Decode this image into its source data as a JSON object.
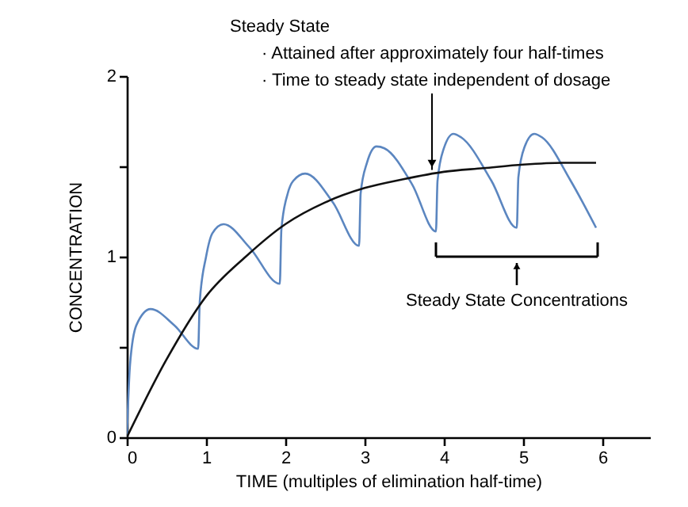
{
  "chart_data": {
    "type": "line",
    "xlabel": "TIME (multiples of elimination half-time)",
    "ylabel": "CONCENTRATION",
    "xlim": [
      0,
      6.6
    ],
    "xticks": [
      0,
      1,
      2,
      3,
      4,
      5,
      6
    ],
    "ylim": [
      0,
      2
    ],
    "yticks": [
      0,
      {
        "value": 0.5,
        "label": null
      },
      1,
      {
        "value": 1.5,
        "label": null
      },
      2
    ],
    "grid": false,
    "marker": "none",
    "line_style": "solid",
    "series": [
      {
        "color": "#5b86c0",
        "x": [
          0,
          0.04,
          0.12,
          0.3,
          0.6,
          0.9,
          0.92,
          1.0,
          1.08,
          1.22,
          1.55,
          1.93,
          1.95,
          2.03,
          2.1,
          2.25,
          2.6,
          2.93,
          2.95,
          3.03,
          3.15,
          3.25,
          3.6,
          3.9,
          3.92,
          4.0,
          4.12,
          4.22,
          4.6,
          4.92,
          4.94,
          5.02,
          5.14,
          5.24,
          5.6,
          5.92
        ],
        "values": [
          0,
          0.4,
          0.62,
          0.71,
          0.62,
          0.49,
          0.75,
          1.0,
          1.13,
          1.18,
          1.05,
          0.85,
          1.15,
          1.35,
          1.42,
          1.46,
          1.3,
          1.06,
          1.35,
          1.52,
          1.61,
          1.6,
          1.4,
          1.14,
          1.42,
          1.6,
          1.68,
          1.66,
          1.42,
          1.16,
          1.44,
          1.61,
          1.68,
          1.66,
          1.42,
          1.16
        ]
      },
      {
        "color": "#111111",
        "x": [
          0,
          0.5,
          1,
          1.5,
          2,
          2.5,
          3,
          3.5,
          4,
          4.5,
          5,
          5.5,
          5.92
        ],
        "values": [
          0,
          0.43,
          0.78,
          1.0,
          1.18,
          1.3,
          1.38,
          1.43,
          1.47,
          1.49,
          1.51,
          1.52,
          1.52
        ]
      }
    ],
    "annotations": [
      "Steady State",
      "· Attained after approximately four half-times",
      {
        "text": "· Time to steady state independent of dosage",
        "x": 3.85,
        "y": 1.48
      },
      "Steady State Concentrations"
    ]
  }
}
